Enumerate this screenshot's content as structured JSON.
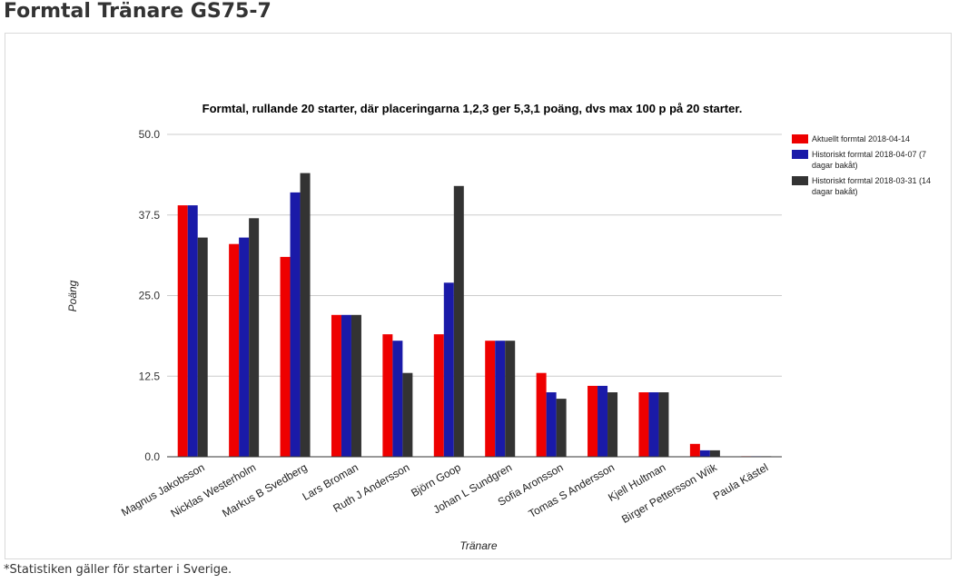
{
  "page": {
    "title": "Formtal Tränare GS75-7",
    "footnote": "*Statistiken gäller för starter i Sverige."
  },
  "chart_data": {
    "type": "bar",
    "title": "Formtal, rullande 20 starter, där placeringarna 1,2,3 ger 5,3,1 poäng, dvs max 100 p på 20 starter.",
    "xlabel": "Tränare",
    "ylabel": "Poäng",
    "ylim": [
      0,
      50
    ],
    "yticks": [
      0,
      12.5,
      25,
      37.5,
      50
    ],
    "ytick_labels": [
      "0.0",
      "12.5",
      "25.0",
      "37.5",
      "50.0"
    ],
    "grid": true,
    "legend_position": "right",
    "categories": [
      "Magnus Jakobsson",
      "Nicklas Westerholm",
      "Markus B Svedberg",
      "Lars Broman",
      "Ruth J Andersson",
      "Björn Goop",
      "Johan L Sundgren",
      "Sofia Aronsson",
      "Tomas S Andersson",
      "Kjell Hultman",
      "Birger Pettersson Wiik",
      "Paula Kästel"
    ],
    "series": [
      {
        "name": "Aktuellt formtal 2018-04-14",
        "color": "#ee0000",
        "values": [
          39,
          33,
          31,
          22,
          19,
          19,
          18,
          13,
          11,
          10,
          2,
          0
        ]
      },
      {
        "name": "Historiskt formtal 2018-04-07 (7 dagar bakåt)",
        "color": "#1a1aa8",
        "values": [
          39,
          34,
          41,
          22,
          18,
          27,
          18,
          10,
          11,
          10,
          1,
          0
        ]
      },
      {
        "name": "Historiskt formtal 2018-03-31 (14 dagar bakåt)",
        "color": "#333333",
        "values": [
          34,
          37,
          44,
          22,
          13,
          42,
          18,
          9,
          10,
          10,
          1,
          0
        ]
      }
    ]
  }
}
